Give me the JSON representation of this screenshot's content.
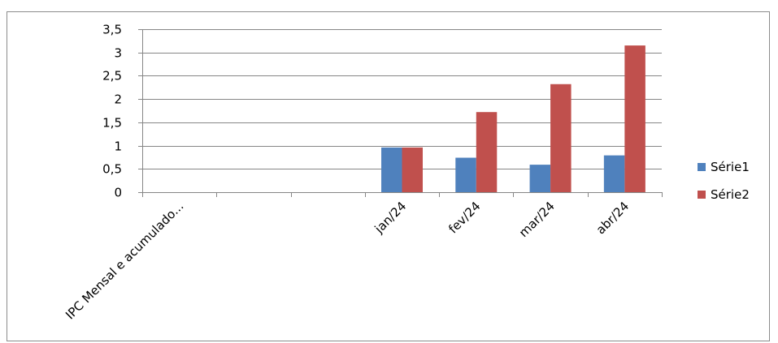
{
  "chart_data": {
    "type": "bar",
    "categories": [
      "IPC Mensal  e acumulado...",
      "",
      "",
      "jan/24",
      "fev/24",
      "mar/24",
      "abr/24"
    ],
    "series": [
      {
        "name": "Série1",
        "values": [
          null,
          null,
          null,
          0.96,
          0.74,
          0.59,
          0.79
        ]
      },
      {
        "name": "Série2",
        "values": [
          null,
          null,
          null,
          0.96,
          1.72,
          2.32,
          3.15
        ]
      }
    ],
    "y_ticks": [
      "0",
      "0,5",
      "1",
      "1,5",
      "2",
      "2,5",
      "3",
      "3,5"
    ],
    "ylim": [
      0,
      3.5
    ],
    "grid": true,
    "legend_position": "right",
    "colors": {
      "Série1": "#4f81bd",
      "Série2": "#c0504d"
    }
  }
}
